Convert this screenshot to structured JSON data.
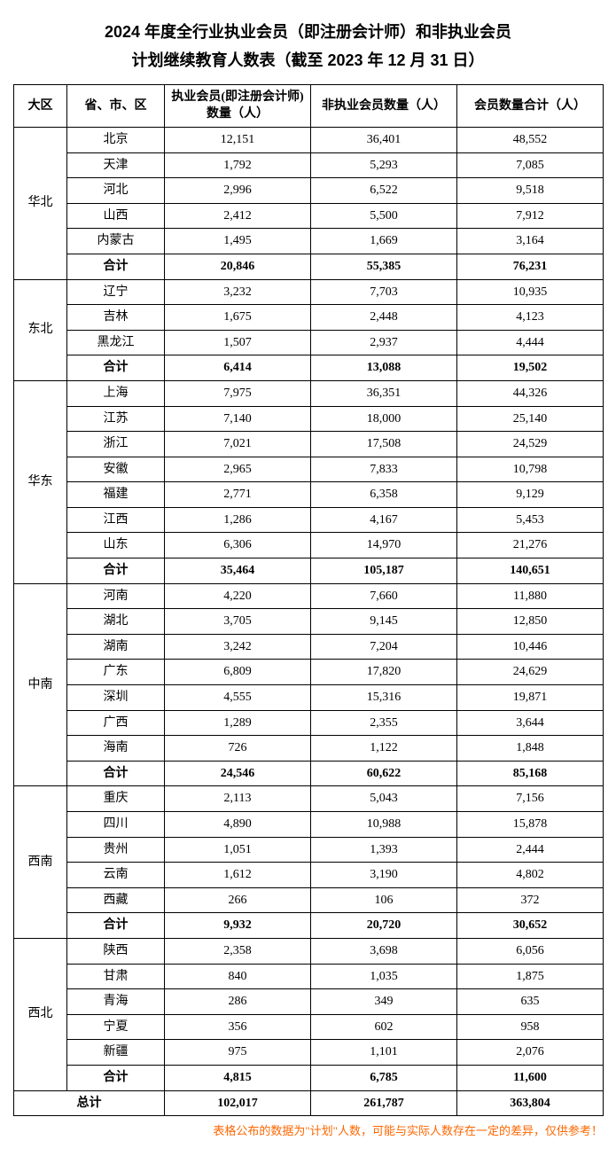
{
  "title_line1": "2024 年度全行业执业会员（即注册会计师）和非执业会员",
  "title_line2": "计划继续教育人数表（截至 2023 年 12 月 31 日）",
  "marker": "↵",
  "headers": {
    "region": "大区",
    "province": "省、市、区",
    "practicing": "执业会员(即注册会计师) 数量（人）",
    "non_practicing": "非执业会员数量（人）",
    "total": "会员数量合计（人）"
  },
  "subtotal_label": "合计",
  "grand_total_label": "总计",
  "regions": [
    {
      "name": "华北",
      "rows": [
        {
          "p": "北京",
          "a": "12,151",
          "b": "36,401",
          "c": "48,552"
        },
        {
          "p": "天津",
          "a": "1,792",
          "b": "5,293",
          "c": "7,085"
        },
        {
          "p": "河北",
          "a": "2,996",
          "b": "6,522",
          "c": "9,518"
        },
        {
          "p": "山西",
          "a": "2,412",
          "b": "5,500",
          "c": "7,912"
        },
        {
          "p": "内蒙古",
          "a": "1,495",
          "b": "1,669",
          "c": "3,164"
        }
      ],
      "subtotal": {
        "a": "20,846",
        "b": "55,385",
        "c": "76,231"
      }
    },
    {
      "name": "东北",
      "rows": [
        {
          "p": "辽宁",
          "a": "3,232",
          "b": "7,703",
          "c": "10,935"
        },
        {
          "p": "吉林",
          "a": "1,675",
          "b": "2,448",
          "c": "4,123"
        },
        {
          "p": "黑龙江",
          "a": "1,507",
          "b": "2,937",
          "c": "4,444"
        }
      ],
      "subtotal": {
        "a": "6,414",
        "b": "13,088",
        "c": "19,502"
      }
    },
    {
      "name": "华东",
      "rows": [
        {
          "p": "上海",
          "a": "7,975",
          "b": "36,351",
          "c": "44,326"
        },
        {
          "p": "江苏",
          "a": "7,140",
          "b": "18,000",
          "c": "25,140"
        },
        {
          "p": "浙江",
          "a": "7,021",
          "b": "17,508",
          "c": "24,529"
        },
        {
          "p": "安徽",
          "a": "2,965",
          "b": "7,833",
          "c": "10,798"
        },
        {
          "p": "福建",
          "a": "2,771",
          "b": "6,358",
          "c": "9,129"
        },
        {
          "p": "江西",
          "a": "1,286",
          "b": "4,167",
          "c": "5,453"
        },
        {
          "p": "山东",
          "a": "6,306",
          "b": "14,970",
          "c": "21,276"
        }
      ],
      "subtotal": {
        "a": "35,464",
        "b": "105,187",
        "c": "140,651"
      }
    },
    {
      "name": "中南",
      "rows": [
        {
          "p": "河南",
          "a": "4,220",
          "b": "7,660",
          "c": "11,880"
        },
        {
          "p": "湖北",
          "a": "3,705",
          "b": "9,145",
          "c": "12,850"
        },
        {
          "p": "湖南",
          "a": "3,242",
          "b": "7,204",
          "c": "10,446"
        },
        {
          "p": "广东",
          "a": "6,809",
          "b": "17,820",
          "c": "24,629"
        },
        {
          "p": "深圳",
          "a": "4,555",
          "b": "15,316",
          "c": "19,871"
        },
        {
          "p": "广西",
          "a": "1,289",
          "b": "2,355",
          "c": "3,644"
        },
        {
          "p": "海南",
          "a": "726",
          "b": "1,122",
          "c": "1,848"
        }
      ],
      "subtotal": {
        "a": "24,546",
        "b": "60,622",
        "c": "85,168"
      }
    },
    {
      "name": "西南",
      "rows": [
        {
          "p": "重庆",
          "a": "2,113",
          "b": "5,043",
          "c": "7,156"
        },
        {
          "p": "四川",
          "a": "4,890",
          "b": "10,988",
          "c": "15,878"
        },
        {
          "p": "贵州",
          "a": "1,051",
          "b": "1,393",
          "c": "2,444"
        },
        {
          "p": "云南",
          "a": "1,612",
          "b": "3,190",
          "c": "4,802"
        },
        {
          "p": "西藏",
          "a": "266",
          "b": "106",
          "c": "372"
        }
      ],
      "subtotal": {
        "a": "9,932",
        "b": "20,720",
        "c": "30,652"
      }
    },
    {
      "name": "西北",
      "rows": [
        {
          "p": "陕西",
          "a": "2,358",
          "b": "3,698",
          "c": "6,056"
        },
        {
          "p": "甘肃",
          "a": "840",
          "b": "1,035",
          "c": "1,875"
        },
        {
          "p": "青海",
          "a": "286",
          "b": "349",
          "c": "635"
        },
        {
          "p": "宁夏",
          "a": "356",
          "b": "602",
          "c": "958"
        },
        {
          "p": "新疆",
          "a": "975",
          "b": "1,101",
          "c": "2,076"
        }
      ],
      "subtotal": {
        "a": "4,815",
        "b": "6,785",
        "c": "11,600"
      }
    }
  ],
  "grand_total": {
    "a": "102,017",
    "b": "261,787",
    "c": "363,804"
  },
  "footnote": "表格公布的数据为\"计划\"人数，可能与实际人数存在一定的差异，仅供参考！"
}
